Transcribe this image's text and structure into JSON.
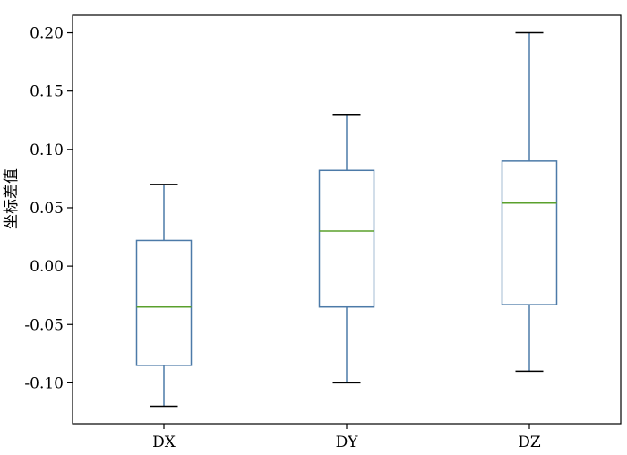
{
  "chart_data": {
    "type": "box",
    "title": "",
    "xlabel": "",
    "ylabel": "坐标差值",
    "categories": [
      "DX",
      "DY",
      "DZ"
    ],
    "boxes": [
      {
        "category": "DX",
        "whisker_low": -0.12,
        "q1": -0.085,
        "median": -0.035,
        "q3": 0.022,
        "whisker_high": 0.07
      },
      {
        "category": "DY",
        "whisker_low": -0.1,
        "q1": -0.035,
        "median": 0.03,
        "q3": 0.082,
        "whisker_high": 0.13
      },
      {
        "category": "DZ",
        "whisker_low": -0.09,
        "q1": -0.033,
        "median": 0.054,
        "q3": 0.09,
        "whisker_high": 0.2
      }
    ],
    "yticks": [
      -0.1,
      -0.05,
      0.0,
      0.05,
      0.1,
      0.15,
      0.2
    ],
    "ytick_labels": [
      "-0.10",
      "-0.05",
      "0.00",
      "0.05",
      "0.10",
      "0.15",
      "0.20"
    ],
    "ylim": [
      -0.135,
      0.215
    ],
    "grid": false,
    "legend": "none",
    "colors": {
      "box": "#4c7aa8",
      "median": "#5aa02c",
      "whisker_cap": "#000000",
      "frame": "#000000"
    }
  }
}
